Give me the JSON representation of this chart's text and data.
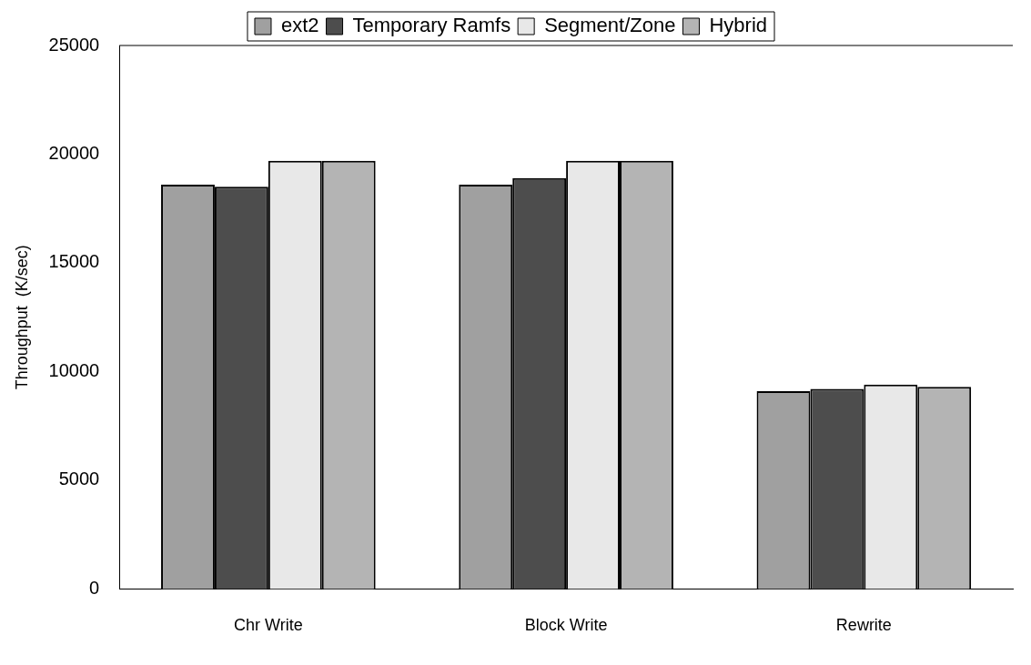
{
  "chart_data": {
    "type": "bar",
    "ylabel": "Throughput  (K/sec)",
    "categories": [
      "Chr Write",
      "Block Write",
      "Rewrite"
    ],
    "series": [
      {
        "name": "ext2",
        "color": "#a0a0a0",
        "values": [
          18600,
          18600,
          9100
        ]
      },
      {
        "name": "Temporary Ramfs",
        "color": "#4d4d4d",
        "values": [
          18500,
          18900,
          9200
        ]
      },
      {
        "name": "Segment/Zone",
        "color": "#e8e8e8",
        "values": [
          19700,
          19700,
          9400
        ]
      },
      {
        "name": "Hybrid",
        "color": "#b4b4b4",
        "values": [
          19700,
          19700,
          9300
        ]
      }
    ],
    "ylim": [
      0,
      25000
    ],
    "yticks": [
      0,
      5000,
      10000,
      15000,
      20000,
      25000
    ],
    "legend": "top"
  }
}
